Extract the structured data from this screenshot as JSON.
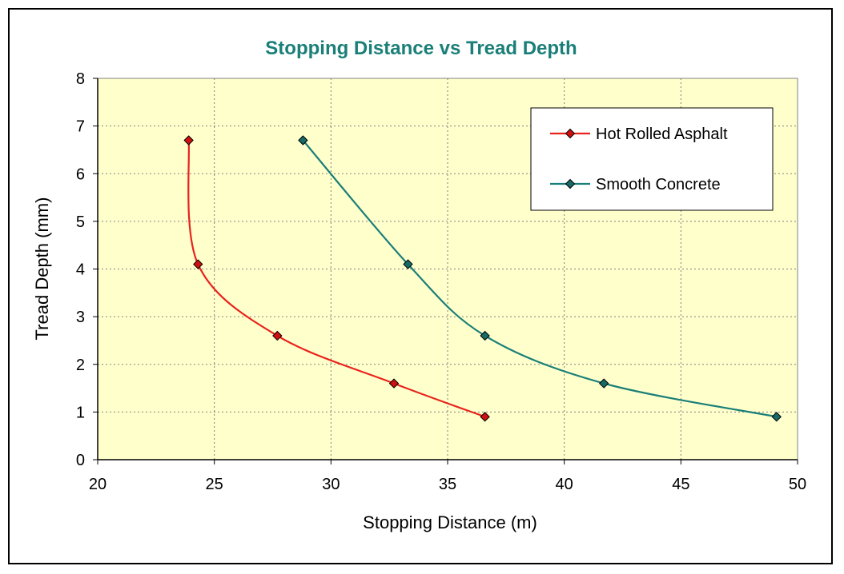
{
  "chart_data": {
    "type": "line",
    "title": "Stopping Distance vs Tread Depth",
    "xlabel": "Stopping Distance (m)",
    "ylabel": "Tread Depth (mm)",
    "xlim": [
      20,
      50
    ],
    "ylim": [
      0,
      8
    ],
    "x_ticks": [
      20,
      25,
      30,
      35,
      40,
      45,
      50
    ],
    "y_ticks": [
      0,
      1,
      2,
      3,
      4,
      5,
      6,
      7,
      8
    ],
    "grid": true,
    "legend_position": "top-right",
    "series": [
      {
        "name": "Hot Rolled Asphalt",
        "color": "#e8231c",
        "marker_color": "#d01010",
        "points": [
          {
            "x": 23.9,
            "y": 6.7
          },
          {
            "x": 24.3,
            "y": 4.1
          },
          {
            "x": 27.7,
            "y": 2.6
          },
          {
            "x": 32.7,
            "y": 1.6
          },
          {
            "x": 36.6,
            "y": 0.9
          }
        ]
      },
      {
        "name": "Smooth Concrete",
        "color": "#1a7f78",
        "marker_color": "#166b66",
        "points": [
          {
            "x": 28.8,
            "y": 6.7
          },
          {
            "x": 33.3,
            "y": 4.1
          },
          {
            "x": 36.6,
            "y": 2.6
          },
          {
            "x": 41.7,
            "y": 1.6
          },
          {
            "x": 49.1,
            "y": 0.9
          }
        ]
      }
    ]
  },
  "colors": {
    "title": "#1a7f78",
    "plot_background": "#ffffcc",
    "grid": "#808080"
  }
}
